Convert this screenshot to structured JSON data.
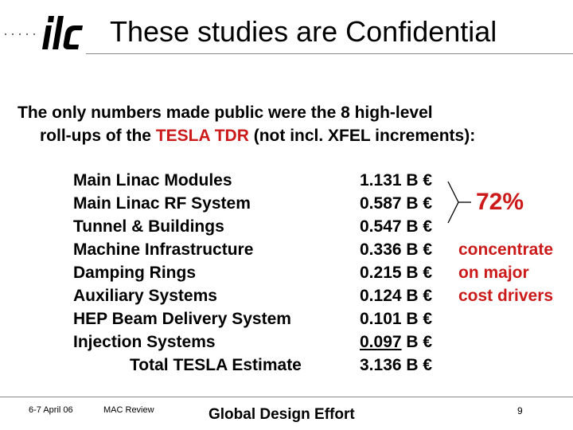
{
  "header": {
    "title": "These studies are Confidential"
  },
  "intro": {
    "line1": "The only numbers made public were the 8 high-level",
    "line2_prefix": "roll-ups of the ",
    "line2_highlight": "TESLA TDR",
    "line2_suffix": " (not incl. XFEL increments):"
  },
  "rollups": [
    {
      "label": "Main Linac Modules",
      "value": "1.131 B €"
    },
    {
      "label": "Main Linac RF System",
      "value": "0.587 B €"
    },
    {
      "label": "Tunnel & Buildings",
      "value": "0.547 B €"
    },
    {
      "label": "Machine Infrastructure",
      "value": "0.336 B €"
    },
    {
      "label": "Damping Rings",
      "value": "0.215 B €"
    },
    {
      "label": "Auxiliary Systems",
      "value": "0.124 B €"
    },
    {
      "label": "HEP Beam Delivery System",
      "value": "0.101 B €"
    },
    {
      "label": "Injection Systems",
      "value_underlined": "0.097",
      "value_unit": " B €"
    }
  ],
  "total": {
    "label": "Total TESLA Estimate",
    "value": "3.136 B €"
  },
  "annotation": {
    "percent": "72%",
    "lines": [
      "concentrate",
      "on major",
      "cost drivers"
    ]
  },
  "footer": {
    "date": "6-7 April 06",
    "review": "MAC Review",
    "center": "Global Design Effort",
    "page": "9"
  },
  "colors": {
    "accent_red": "#cc1a1a",
    "rule_gray": "#8a8a8a"
  }
}
